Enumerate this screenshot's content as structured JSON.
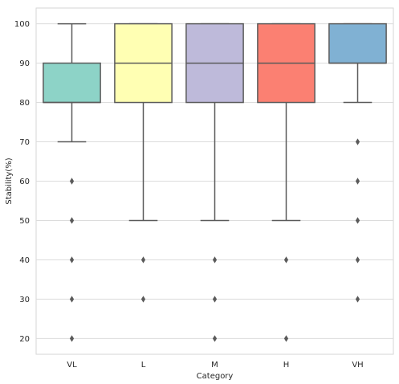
{
  "chart_data": {
    "type": "boxplot",
    "xlabel": "Category",
    "ylabel": "Stability(%)",
    "ylim": [
      16,
      104
    ],
    "yticks": [
      20,
      30,
      40,
      50,
      60,
      70,
      80,
      90,
      100
    ],
    "grid": true,
    "categories": [
      "VL",
      "L",
      "M",
      "H",
      "VH"
    ],
    "colors": [
      "#8dd3c7",
      "#ffffb3",
      "#bebada",
      "#fb8072",
      "#80b1d3"
    ],
    "boxes": [
      {
        "category": "VL",
        "whisker_low": 70,
        "q1": 80,
        "median": 80,
        "q3": 90,
        "whisker_high": 100,
        "outliers": [
          60,
          50,
          40,
          30,
          20
        ]
      },
      {
        "category": "L",
        "whisker_low": 50,
        "q1": 80,
        "median": 90,
        "q3": 100,
        "whisker_high": 100,
        "outliers": [
          40,
          30
        ]
      },
      {
        "category": "M",
        "whisker_low": 50,
        "q1": 80,
        "median": 90,
        "q3": 100,
        "whisker_high": 100,
        "outliers": [
          40,
          30,
          20
        ]
      },
      {
        "category": "H",
        "whisker_low": 50,
        "q1": 80,
        "median": 90,
        "q3": 100,
        "whisker_high": 100,
        "outliers": [
          40,
          20
        ]
      },
      {
        "category": "VH",
        "whisker_low": 80,
        "q1": 90,
        "median": 90,
        "q3": 100,
        "whisker_high": 100,
        "outliers": [
          70,
          60,
          50,
          40,
          30
        ]
      }
    ]
  }
}
